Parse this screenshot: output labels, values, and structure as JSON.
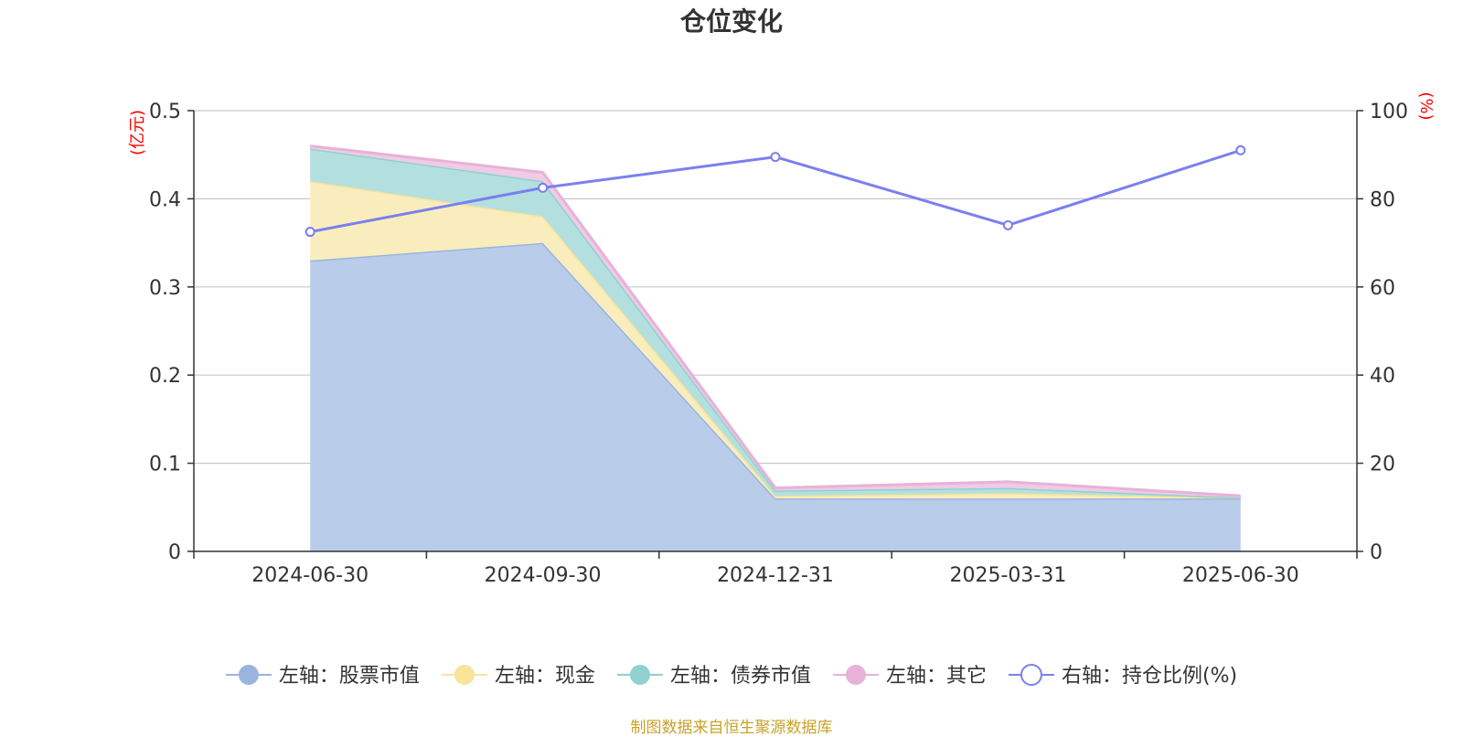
{
  "title": "仓位变化",
  "source_note": "制图数据来自恒生聚源数据库",
  "chart_data": {
    "type": "area",
    "title": "仓位变化",
    "categories": [
      "2024-06-30",
      "2024-09-30",
      "2024-12-31",
      "2025-03-31",
      "2025-06-30"
    ],
    "left_axis": {
      "unit": "(亿元)",
      "ylim": [
        0,
        0.5
      ],
      "ticks": [
        "0",
        "0.1",
        "0.2",
        "0.3",
        "0.4",
        "0.5"
      ]
    },
    "right_axis": {
      "unit": "(%)",
      "ylim": [
        0,
        100
      ],
      "ticks": [
        "0",
        "20",
        "40",
        "60",
        "80",
        "100"
      ]
    },
    "grid": true,
    "legend_position": "bottom",
    "stacked_series": [
      {
        "name": "左轴：股票市值",
        "values": [
          0.33,
          0.35,
          0.06,
          0.06,
          0.06
        ],
        "line_color": "#9ab4e0",
        "fill_color": "#b9cdea"
      },
      {
        "name": "左轴：现金",
        "values": [
          0.09,
          0.03,
          0.003,
          0.006,
          0.001
        ],
        "line_color": "#f7e49a",
        "fill_color": "#f9edbd"
      },
      {
        "name": "左轴：债券市值",
        "values": [
          0.037,
          0.04,
          0.006,
          0.006,
          0.0
        ],
        "line_color": "#8fd1cf",
        "fill_color": "#b3e0de"
      },
      {
        "name": "左轴：其它",
        "values": [
          0.003,
          0.01,
          0.003,
          0.007,
          0.002
        ],
        "line_color": "#e7b2d8",
        "fill_color": "#efcbe5"
      }
    ],
    "line_series": {
      "name": "右轴：持仓比例(%)",
      "axis": "right",
      "values": [
        72.5,
        82.5,
        89.5,
        74.0,
        91.0
      ],
      "color": "#7a7ff0"
    }
  }
}
